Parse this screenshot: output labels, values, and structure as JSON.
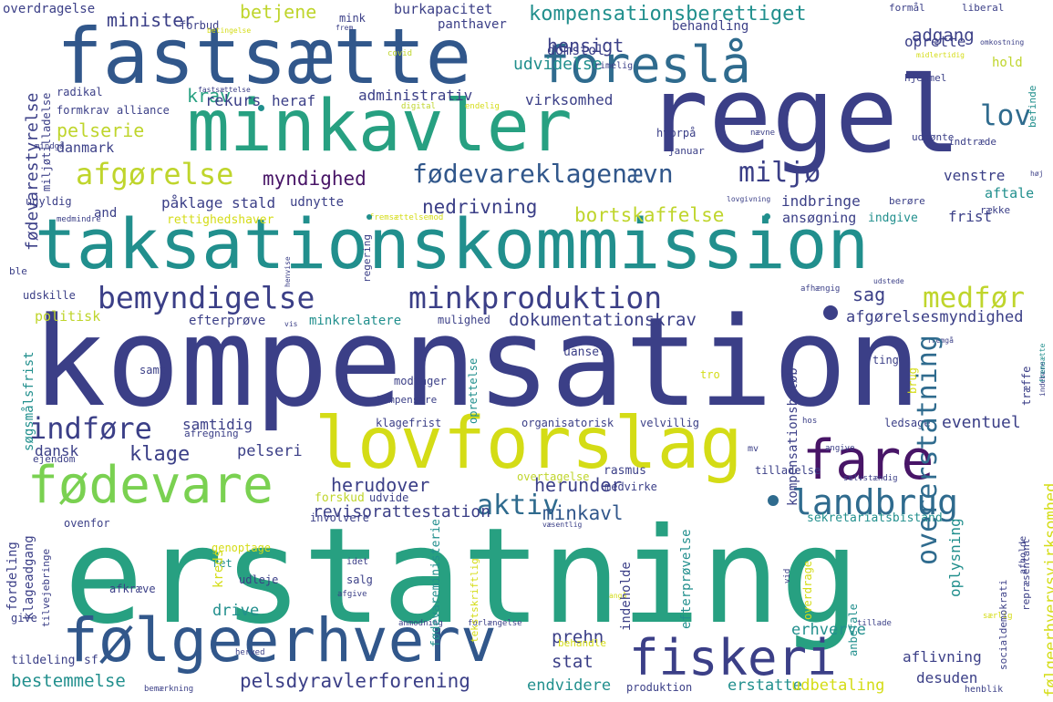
{
  "palette": {
    "navy": "#3b3f87",
    "indigo": "#472f7d",
    "purple": "#481567",
    "blue": "#31578b",
    "steel": "#2f6b8e",
    "teal": "#218f8d",
    "sea": "#27a081",
    "green": "#3fbc73",
    "lime": "#7ad151",
    "yellow": "#d4dc16",
    "gold": "#bfd52c"
  },
  "words": [
    {
      "text": "kompensation",
      "color": "#3b3f87"
    },
    {
      "text": "erstatning",
      "color": "#27a081"
    },
    {
      "text": "regel",
      "color": "#3b3f87"
    },
    {
      "text": "taksationskommission",
      "color": "#218f8d"
    },
    {
      "text": "fastsætte",
      "color": "#31578b"
    },
    {
      "text": "minkavler",
      "color": "#27a081"
    },
    {
      "text": "lovforslag",
      "color": "#d4dc16"
    },
    {
      "text": "foreslå",
      "color": "#2f6b8e"
    },
    {
      "text": "følgeerhverv",
      "color": "#31578b"
    },
    {
      "text": "fødevare",
      "color": "#7ad151"
    },
    {
      "text": "fiskeri",
      "color": "#3b3f87"
    },
    {
      "text": "fare",
      "color": "#481567"
    },
    {
      "text": "landbrug",
      "color": "#2f6b8e"
    },
    {
      "text": "bemyndigelse",
      "color": "#3b3f87"
    },
    {
      "text": "minkproduktion",
      "color": "#3b3f87"
    },
    {
      "text": "fødevareklagenævn",
      "color": "#31578b"
    },
    {
      "text": "afgørelse",
      "color": "#bfd52c"
    },
    {
      "text": "indføre",
      "color": "#3b3f87"
    },
    {
      "text": "aktiv",
      "color": "#2f6b8e"
    },
    {
      "text": "overerstatning",
      "color": "#2f6b8e"
    },
    {
      "text": "medfør",
      "color": "#bfd52c"
    },
    {
      "text": "miljø",
      "color": "#3b3f87"
    },
    {
      "text": "lov",
      "color": "#2f6b8e"
    },
    {
      "text": "kompensationsberettiget",
      "color": "#218f8d"
    },
    {
      "text": "myndighed",
      "color": "#481567"
    },
    {
      "text": "klage",
      "color": "#3b3f87"
    },
    {
      "text": "krav",
      "color": "#27a081"
    },
    {
      "text": "minister",
      "color": "#3b3f87"
    },
    {
      "text": "pelserie",
      "color": "#bfd52c"
    },
    {
      "text": "betjene",
      "color": "#bfd52c"
    },
    {
      "text": "hensigt",
      "color": "#3b3f87"
    },
    {
      "text": "adgang",
      "color": "#3b3f87"
    },
    {
      "text": "udvidelse",
      "color": "#218f8d"
    },
    {
      "text": "domstol",
      "color": "#3b3f87"
    },
    {
      "text": "nedrivning",
      "color": "#3b3f87"
    },
    {
      "text": "bortskaffelse",
      "color": "#bfd52c"
    },
    {
      "text": "sag",
      "color": "#3b3f87"
    },
    {
      "text": "dokumentationskrav",
      "color": "#3b3f87"
    },
    {
      "text": "afgørelsesmyndighed",
      "color": "#3b3f87"
    },
    {
      "text": "minkavl",
      "color": "#31578b"
    },
    {
      "text": "herudover",
      "color": "#3b3f87"
    },
    {
      "text": "herunder",
      "color": "#3b3f87"
    },
    {
      "text": "revisorattestation",
      "color": "#3b3f87"
    },
    {
      "text": "pelsdyravlerforening",
      "color": "#3b3f87"
    },
    {
      "text": "eventuel",
      "color": "#3b3f87"
    },
    {
      "text": "samtidig",
      "color": "#3b3f87"
    },
    {
      "text": "dansk",
      "color": "#3b3f87"
    },
    {
      "text": "pelseri",
      "color": "#3b3f87"
    },
    {
      "text": "stat",
      "color": "#3b3f87"
    },
    {
      "text": "prehn",
      "color": "#3b3f87"
    },
    {
      "text": "bestemmelse",
      "color": "#218f8d"
    },
    {
      "text": "endvidere",
      "color": "#218f8d"
    },
    {
      "text": "erstatte",
      "color": "#218f8d"
    },
    {
      "text": "udbetaling",
      "color": "#d4dc16"
    },
    {
      "text": "desuden",
      "color": "#3b3f87"
    },
    {
      "text": "erhverve",
      "color": "#218f8d"
    },
    {
      "text": "aflivning",
      "color": "#3b3f87"
    },
    {
      "text": "drive",
      "color": "#218f8d"
    },
    {
      "text": "rekurs",
      "color": "#3b3f87"
    },
    {
      "text": "heraf",
      "color": "#3b3f87"
    },
    {
      "text": "administrativ",
      "color": "#3b3f87"
    },
    {
      "text": "virksomhed",
      "color": "#3b3f87"
    },
    {
      "text": "danmark",
      "color": "#3b3f87"
    },
    {
      "text": "påklage",
      "color": "#3b3f87"
    },
    {
      "text": "stald",
      "color": "#3b3f87"
    },
    {
      "text": "udnytte",
      "color": "#3b3f87"
    },
    {
      "text": "indbringe",
      "color": "#3b3f87"
    },
    {
      "text": "ansøgning",
      "color": "#3b3f87"
    },
    {
      "text": "indgive",
      "color": "#218f8d"
    },
    {
      "text": "frist",
      "color": "#3b3f87"
    },
    {
      "text": "aftale",
      "color": "#218f8d"
    },
    {
      "text": "venstre",
      "color": "#3b3f87"
    },
    {
      "text": "oprette",
      "color": "#3b3f87"
    },
    {
      "text": "hold",
      "color": "#bfd52c"
    },
    {
      "text": "burkapacitet",
      "color": "#3b3f87"
    },
    {
      "text": "panthaver",
      "color": "#3b3f87"
    },
    {
      "text": "behandling",
      "color": "#3b3f87"
    },
    {
      "text": "overdragelse",
      "color": "#3b3f87"
    },
    {
      "text": "forbud",
      "color": "#3b3f87"
    },
    {
      "text": "mink",
      "color": "#3b3f87"
    },
    {
      "text": "formkrav",
      "color": "#3b3f87"
    },
    {
      "text": "alliance",
      "color": "#3b3f87"
    },
    {
      "text": "radikal",
      "color": "#3b3f87"
    },
    {
      "text": "politisk",
      "color": "#bfd52c"
    },
    {
      "text": "efterprøve",
      "color": "#3b3f87"
    },
    {
      "text": "minkrelatere",
      "color": "#218f8d"
    },
    {
      "text": "mulighed",
      "color": "#3b3f87"
    },
    {
      "text": "and",
      "color": "#3b3f87"
    },
    {
      "text": "rettighedshaver",
      "color": "#d4dc16"
    },
    {
      "text": "udskille",
      "color": "#3b3f87"
    },
    {
      "text": "ble",
      "color": "#3b3f87"
    },
    {
      "text": "ugyldig",
      "color": "#3b3f87"
    },
    {
      "text": "uanset",
      "color": "#3b3f87"
    },
    {
      "text": "modtager",
      "color": "#3b3f87"
    },
    {
      "text": "kompensere",
      "color": "#3b3f87"
    },
    {
      "text": "klagefrist",
      "color": "#3b3f87"
    },
    {
      "text": "organisatorisk",
      "color": "#3b3f87"
    },
    {
      "text": "velvillig",
      "color": "#3b3f87"
    },
    {
      "text": "ledsage",
      "color": "#3b3f87"
    },
    {
      "text": "tilladelse",
      "color": "#3b3f87"
    },
    {
      "text": "rasmus",
      "color": "#3b3f87"
    },
    {
      "text": "overtagelse",
      "color": "#bfd52c"
    },
    {
      "text": "medvirke",
      "color": "#3b3f87"
    },
    {
      "text": "forskud",
      "color": "#bfd52c"
    },
    {
      "text": "udvide",
      "color": "#3b3f87"
    },
    {
      "text": "involvere",
      "color": "#3b3f87"
    },
    {
      "text": "ovenfor",
      "color": "#3b3f87"
    },
    {
      "text": "sekretariatsbistand",
      "color": "#218f8d"
    },
    {
      "text": "genoptage",
      "color": "#d4dc16"
    },
    {
      "text": "ret",
      "color": "#218f8d"
    },
    {
      "text": "udleje",
      "color": "#3b3f87"
    },
    {
      "text": "salg",
      "color": "#3b3f87"
    },
    {
      "text": "afkræve",
      "color": "#3b3f87"
    },
    {
      "text": "videregive",
      "color": "#3b3f87"
    },
    {
      "text": "give",
      "color": "#3b3f87"
    },
    {
      "text": "tildeling",
      "color": "#3b3f87"
    },
    {
      "text": "sf",
      "color": "#3b3f87"
    },
    {
      "text": "samt",
      "color": "#3b3f87"
    },
    {
      "text": "ting",
      "color": "#3b3f87"
    },
    {
      "text": "tro",
      "color": "#d4dc16"
    },
    {
      "text": "ejendom",
      "color": "#3b3f87"
    },
    {
      "text": "afregning",
      "color": "#3b3f87"
    },
    {
      "text": "hvorpå",
      "color": "#3b3f87"
    },
    {
      "text": "januar",
      "color": "#3b3f87"
    },
    {
      "text": "udmønte",
      "color": "#3b3f87"
    },
    {
      "text": "indtræde",
      "color": "#3b3f87"
    },
    {
      "text": "hjemmel",
      "color": "#3b3f87"
    },
    {
      "text": "række",
      "color": "#3b3f87"
    },
    {
      "text": "berøre",
      "color": "#3b3f87"
    },
    {
      "text": "liberal",
      "color": "#3b3f87"
    },
    {
      "text": "formål",
      "color": "#3b3f87"
    },
    {
      "text": "yde",
      "color": "#bfd52c"
    },
    {
      "text": "rimelig",
      "color": "#3b3f87"
    },
    {
      "text": "produktion",
      "color": "#3b3f87"
    },
    {
      "text": "behandle",
      "color": "#d4dc16"
    },
    {
      "text": "anmodning",
      "color": "#3b3f87"
    },
    {
      "text": "forlængelse",
      "color": "#3b3f87"
    },
    {
      "text": "kommunikation",
      "color": "#3b3f87"
    },
    {
      "text": "godkendelse",
      "color": "#3b3f87"
    },
    {
      "text": "tillade",
      "color": "#3b3f87"
    },
    {
      "text": "herved",
      "color": "#3b3f87"
    },
    {
      "text": "bemærkning",
      "color": "#3b3f87"
    },
    {
      "text": "henblik",
      "color": "#3b3f87"
    },
    {
      "text": "særlig",
      "color": "#d4dc16"
    },
    {
      "text": "digital",
      "color": "#bfd52c"
    },
    {
      "text": "covid",
      "color": "#bfd52c"
    },
    {
      "text": "frem",
      "color": "#3b3f87"
    },
    {
      "text": "fremgå",
      "color": "#3b3f87"
    },
    {
      "text": "udstede",
      "color": "#3b3f87"
    },
    {
      "text": "afhængig",
      "color": "#3b3f87"
    },
    {
      "text": "lovgivning",
      "color": "#3b3f87"
    },
    {
      "text": "fremsættelsemod",
      "color": "#d4dc16"
    },
    {
      "text": "medmindre",
      "color": "#3b3f87"
    },
    {
      "text": "mindgå",
      "color": "#3b3f87"
    },
    {
      "text": "fastsættelse",
      "color": "#3b3f87"
    },
    {
      "text": "endelig",
      "color": "#d4dc16"
    },
    {
      "text": "nævne",
      "color": "#3b3f87"
    },
    {
      "text": "hos",
      "color": "#3b3f87"
    },
    {
      "text": "angive",
      "color": "#3b3f87"
    },
    {
      "text": "mv",
      "color": "#3b3f87"
    },
    {
      "text": "selvstændig",
      "color": "#3b3f87"
    },
    {
      "text": "væsentlig",
      "color": "#3b3f87"
    },
    {
      "text": "vilkår",
      "color": "#d4dc16"
    },
    {
      "text": "angå",
      "color": "#d4dc16"
    },
    {
      "text": "idet",
      "color": "#3b3f87"
    },
    {
      "text": "afgive",
      "color": "#3b3f87"
    },
    {
      "text": "vis",
      "color": "#3b3f87"
    },
    {
      "text": "høj",
      "color": "#3b3f87"
    },
    {
      "text": "midlertidig",
      "color": "#d4dc16"
    },
    {
      "text": "omkostning",
      "color": "#3b3f87"
    },
    {
      "text": "betingelse",
      "color": "#d4dc16"
    },
    {
      "text": "fødevarestyrelse",
      "color": "#3b3f87"
    },
    {
      "text": "miljøtilladelse",
      "color": "#3b3f87"
    },
    {
      "text": "søgsmålsfrist",
      "color": "#218f8d"
    },
    {
      "text": "kompensationsbeløb",
      "color": "#3b3f87"
    },
    {
      "text": "følgeerhvervsvirksomhed",
      "color": "#d4dc16"
    },
    {
      "text": "oplysning",
      "color": "#218f8d"
    },
    {
      "text": "fødevareministerie",
      "color": "#218f8d"
    },
    {
      "text": "indeholde",
      "color": "#3b3f87"
    },
    {
      "text": "efterprøvelse",
      "color": "#218f8d"
    },
    {
      "text": "tekstskriftlig",
      "color": "#d4dc16"
    },
    {
      "text": "klageadgang",
      "color": "#3b3f87"
    },
    {
      "text": "fordeling",
      "color": "#3b3f87"
    },
    {
      "text": "tilvejebringe",
      "color": "#3b3f87"
    },
    {
      "text": "kreds",
      "color": "#d4dc16"
    },
    {
      "text": "socialdemokrati",
      "color": "#3b3f87"
    },
    {
      "text": "repræsentant",
      "color": "#3b3f87"
    },
    {
      "text": "anbefale",
      "color": "#218f8d"
    },
    {
      "text": "overdrage",
      "color": "#d4dc16"
    },
    {
      "text": "afholde",
      "color": "#3b3f87"
    },
    {
      "text": "træffe",
      "color": "#3b3f87"
    },
    {
      "text": "brug",
      "color": "#d4dc16"
    },
    {
      "text": "oprettelse",
      "color": "#218f8d"
    },
    {
      "text": "regering",
      "color": "#3b3f87"
    },
    {
      "text": "henvise",
      "color": "#3b3f87"
    },
    {
      "text": "indebære",
      "color": "#3b3f87"
    },
    {
      "text": "fremsætte",
      "color": "#218f8d"
    },
    {
      "text": "befinde",
      "color": "#218f8d"
    },
    {
      "text": "vid",
      "color": "#3b3f87"
    }
  ]
}
